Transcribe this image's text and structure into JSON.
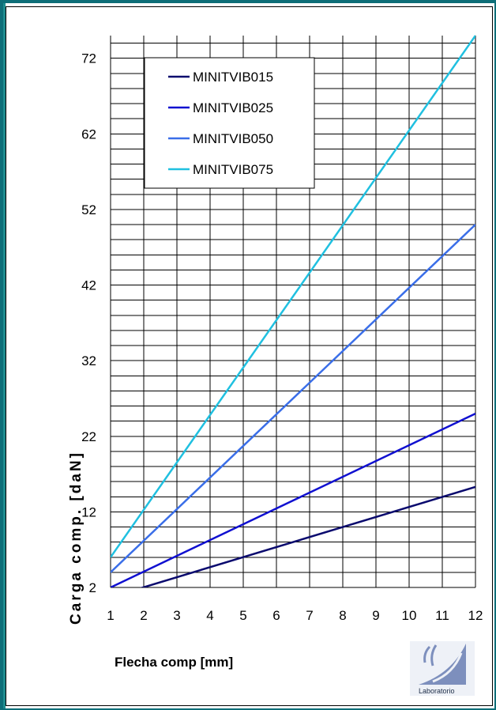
{
  "chart_data": {
    "type": "line",
    "title": "",
    "xlabel": "Flecha comp [mm]",
    "ylabel": "Carga comp. [daN]",
    "x": [
      1,
      2,
      3,
      4,
      5,
      6,
      7,
      8,
      9,
      10,
      11,
      12
    ],
    "xticks": [
      "1",
      "2",
      "3",
      "4",
      "5",
      "6",
      "7",
      "8",
      "9",
      "10",
      "11",
      "12"
    ],
    "yticks": [
      "2",
      "12",
      "22",
      "32",
      "42",
      "52",
      "62",
      "72"
    ],
    "xlim": [
      1,
      12
    ],
    "ylim": [
      2,
      75
    ],
    "grid": true,
    "legend_position": "top-left",
    "series": [
      {
        "name": "MINITVIB015",
        "color": "#0a0a6e",
        "x": [
          1,
          12
        ],
        "y": [
          0.7,
          15.3
        ]
      },
      {
        "name": "MINITVIB025",
        "color": "#1010d0",
        "x": [
          1,
          12
        ],
        "y": [
          2.0,
          25.0
        ]
      },
      {
        "name": "MINITVIB050",
        "color": "#3a6ee8",
        "x": [
          1,
          12
        ],
        "y": [
          4.0,
          50.0
        ]
      },
      {
        "name": "MINITVIB075",
        "color": "#20c0e0",
        "x": [
          1,
          12
        ],
        "y": [
          6.0,
          75.0
        ]
      }
    ]
  },
  "logo": {
    "caption": "Laboratorio"
  }
}
